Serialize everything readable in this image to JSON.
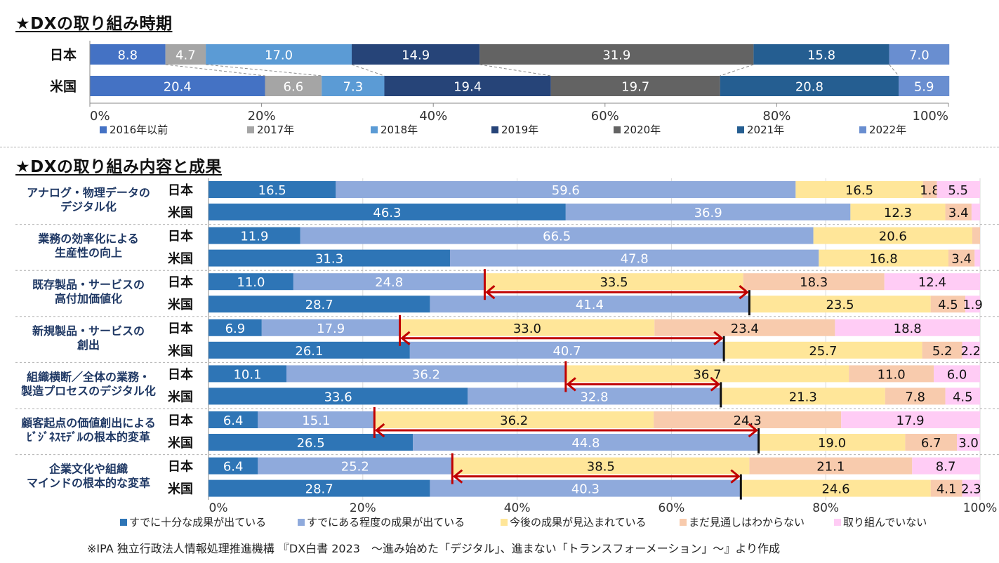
{
  "section1": {
    "title": "★DXの取り組み時期"
  },
  "section2": {
    "title": "★DXの取り組み内容と成果"
  },
  "source_note": "※IPA 独立行政法人情報処理推進機構 『DX白書 2023　～進み始めた「デジタル」、進まない「トランスフォーメーション」～』より作成",
  "chart_data": [
    {
      "type": "bar",
      "orientation": "horizontal",
      "stacked": "percent",
      "title": "★DXの取り組み時期",
      "categories": [
        "日本",
        "米国"
      ],
      "series": [
        {
          "name": "2016年以前",
          "color": "#4472c4",
          "values": [
            8.8,
            20.4
          ]
        },
        {
          "name": "2017年",
          "color": "#a5a5a5",
          "values": [
            4.7,
            6.6
          ]
        },
        {
          "name": "2018年",
          "color": "#5b9bd5",
          "values": [
            17.0,
            7.3
          ]
        },
        {
          "name": "2019年",
          "color": "#264478",
          "values": [
            14.9,
            19.4
          ]
        },
        {
          "name": "2020年",
          "color": "#636363",
          "values": [
            31.9,
            19.7
          ]
        },
        {
          "name": "2021年",
          "color": "#255e91",
          "values": [
            15.8,
            20.8
          ]
        },
        {
          "name": "2022年",
          "color": "#698ed0",
          "values": [
            7.0,
            5.9
          ]
        }
      ],
      "x_ticks": [
        "0%",
        "20%",
        "40%",
        "60%",
        "80%",
        "100%"
      ],
      "xlim": [
        0,
        100
      ],
      "legend_position": "bottom",
      "grid": false
    },
    {
      "type": "bar",
      "orientation": "horizontal",
      "stacked": "percent",
      "title": "★DXの取り組み内容と成果",
      "groups": [
        {
          "label": [
            "アナログ・物理データの",
            "デジタル化"
          ]
        },
        {
          "label": [
            "業務の効率化による",
            "生産性の向上"
          ]
        },
        {
          "label": [
            "既存製品・サービスの",
            "高付加価値化"
          ]
        },
        {
          "label": [
            "新規製品・サービスの",
            "創出"
          ]
        },
        {
          "label": [
            "組織横断／全体の業務・",
            "製造プロセスのデジタル化"
          ]
        },
        {
          "label": [
            "顧客起点の価値創出による",
            "ﾋﾞｼﾞﾈｽﾓﾃﾞﾙの根本的変革"
          ]
        },
        {
          "label": [
            "企業文化や組織",
            "マインドの根本的な変革"
          ]
        }
      ],
      "countries": [
        "日本",
        "米国"
      ],
      "series": [
        {
          "name": "すでに十分な成果が出ている",
          "color": "#2e75b6",
          "text_color": "#ffffff",
          "values": [
            [
              16.5,
              46.3
            ],
            [
              11.9,
              31.3
            ],
            [
              11.0,
              28.7
            ],
            [
              6.9,
              26.1
            ],
            [
              10.1,
              33.6
            ],
            [
              6.4,
              26.5
            ],
            [
              6.4,
              28.7
            ]
          ]
        },
        {
          "name": "すでにある程度の成果が出ている",
          "color": "#8faadc",
          "text_color": "#ffffff",
          "values": [
            [
              59.6,
              36.9
            ],
            [
              66.5,
              47.8
            ],
            [
              24.8,
              41.4
            ],
            [
              17.9,
              40.7
            ],
            [
              36.2,
              32.8
            ],
            [
              15.1,
              44.8
            ],
            [
              25.2,
              40.3
            ]
          ]
        },
        {
          "name": "今後の成果が見込まれている",
          "color": "#ffe699",
          "text_color": "#111111",
          "values": [
            [
              16.5,
              12.3
            ],
            [
              20.6,
              16.8
            ],
            [
              33.5,
              23.5
            ],
            [
              33.0,
              25.7
            ],
            [
              36.7,
              21.3
            ],
            [
              36.2,
              19.0
            ],
            [
              38.5,
              24.6
            ]
          ]
        },
        {
          "name": "まだ見通しはわからない",
          "color": "#f8cbad",
          "text_color": "#111111",
          "values": [
            [
              1.8,
              3.4
            ],
            [
              null,
              3.4
            ],
            [
              18.3,
              4.5
            ],
            [
              23.4,
              5.2
            ],
            [
              11.0,
              7.8
            ],
            [
              24.3,
              6.7
            ],
            [
              21.1,
              4.1
            ]
          ]
        },
        {
          "name": "取り組んでいない",
          "color": "#ffccf5",
          "text_color": "#111111",
          "values": [
            [
              5.5,
              null
            ],
            [
              null,
              null
            ],
            [
              12.4,
              1.9
            ],
            [
              18.8,
              2.2
            ],
            [
              6.0,
              4.5
            ],
            [
              17.9,
              3.0
            ],
            [
              8.7,
              2.3
            ]
          ]
        }
      ],
      "x_ticks": [
        "0%",
        "20%",
        "40%",
        "60%",
        "80%",
        "100%"
      ],
      "xlim": [
        0,
        100
      ],
      "annotation": "gap arrows between 日本 and 米国 achievement levels",
      "arrow_color": "#c00000",
      "legend_position": "bottom",
      "grid": true
    }
  ]
}
